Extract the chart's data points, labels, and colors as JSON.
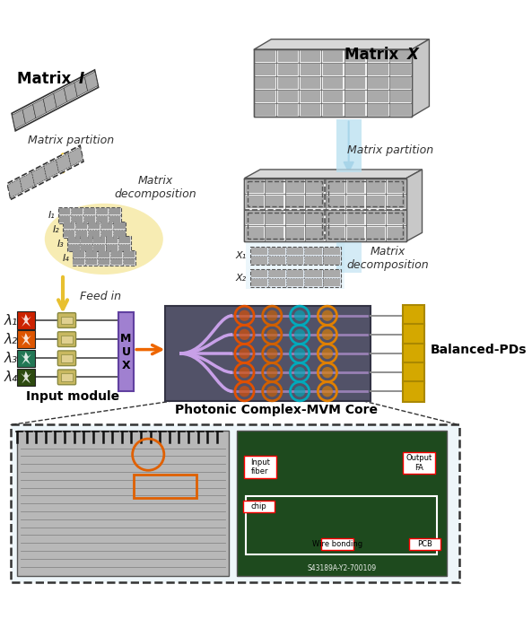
{
  "bg_color": "#ffffff",
  "matrix_partition_label": "Matrix partition",
  "matrix_decomposition_label": "Matrix\ndecomposition",
  "feed_in_label": "Feed in",
  "input_module_label": "Input module",
  "mux_label": "M\nU\nX",
  "photonic_label": "Photonic Complex-MVM Core",
  "balanced_label": "Balanced-PDs",
  "lambda_labels": [
    "λ₁",
    "λ₂",
    "λ₃",
    "λ₄"
  ],
  "lambda_colors": [
    "#cc2200",
    "#dd5500",
    "#227755",
    "#2d4a10"
  ],
  "I_labels": [
    "I₁",
    "I₂",
    "I₃",
    "I₄"
  ],
  "X_labels": [
    "X₁",
    "X₂"
  ],
  "arrow_color_yellow": "#e8c030",
  "arrow_color_blue": "#88ccee",
  "arrow_color_orange": "#ee6600",
  "mux_color": "#a080d0",
  "chip_bg_color": "#525268",
  "waveguide_color": "#c8a0e8",
  "pd_color": "#d4a800",
  "input_fiber_label": "Input\nfiber",
  "output_fa_label": "Output\nFA",
  "chip_label": "chip",
  "wire_bonding_label": "Wire bonding",
  "pcb_label": "PCB",
  "serial_label": "S43189A-Y2-700109"
}
